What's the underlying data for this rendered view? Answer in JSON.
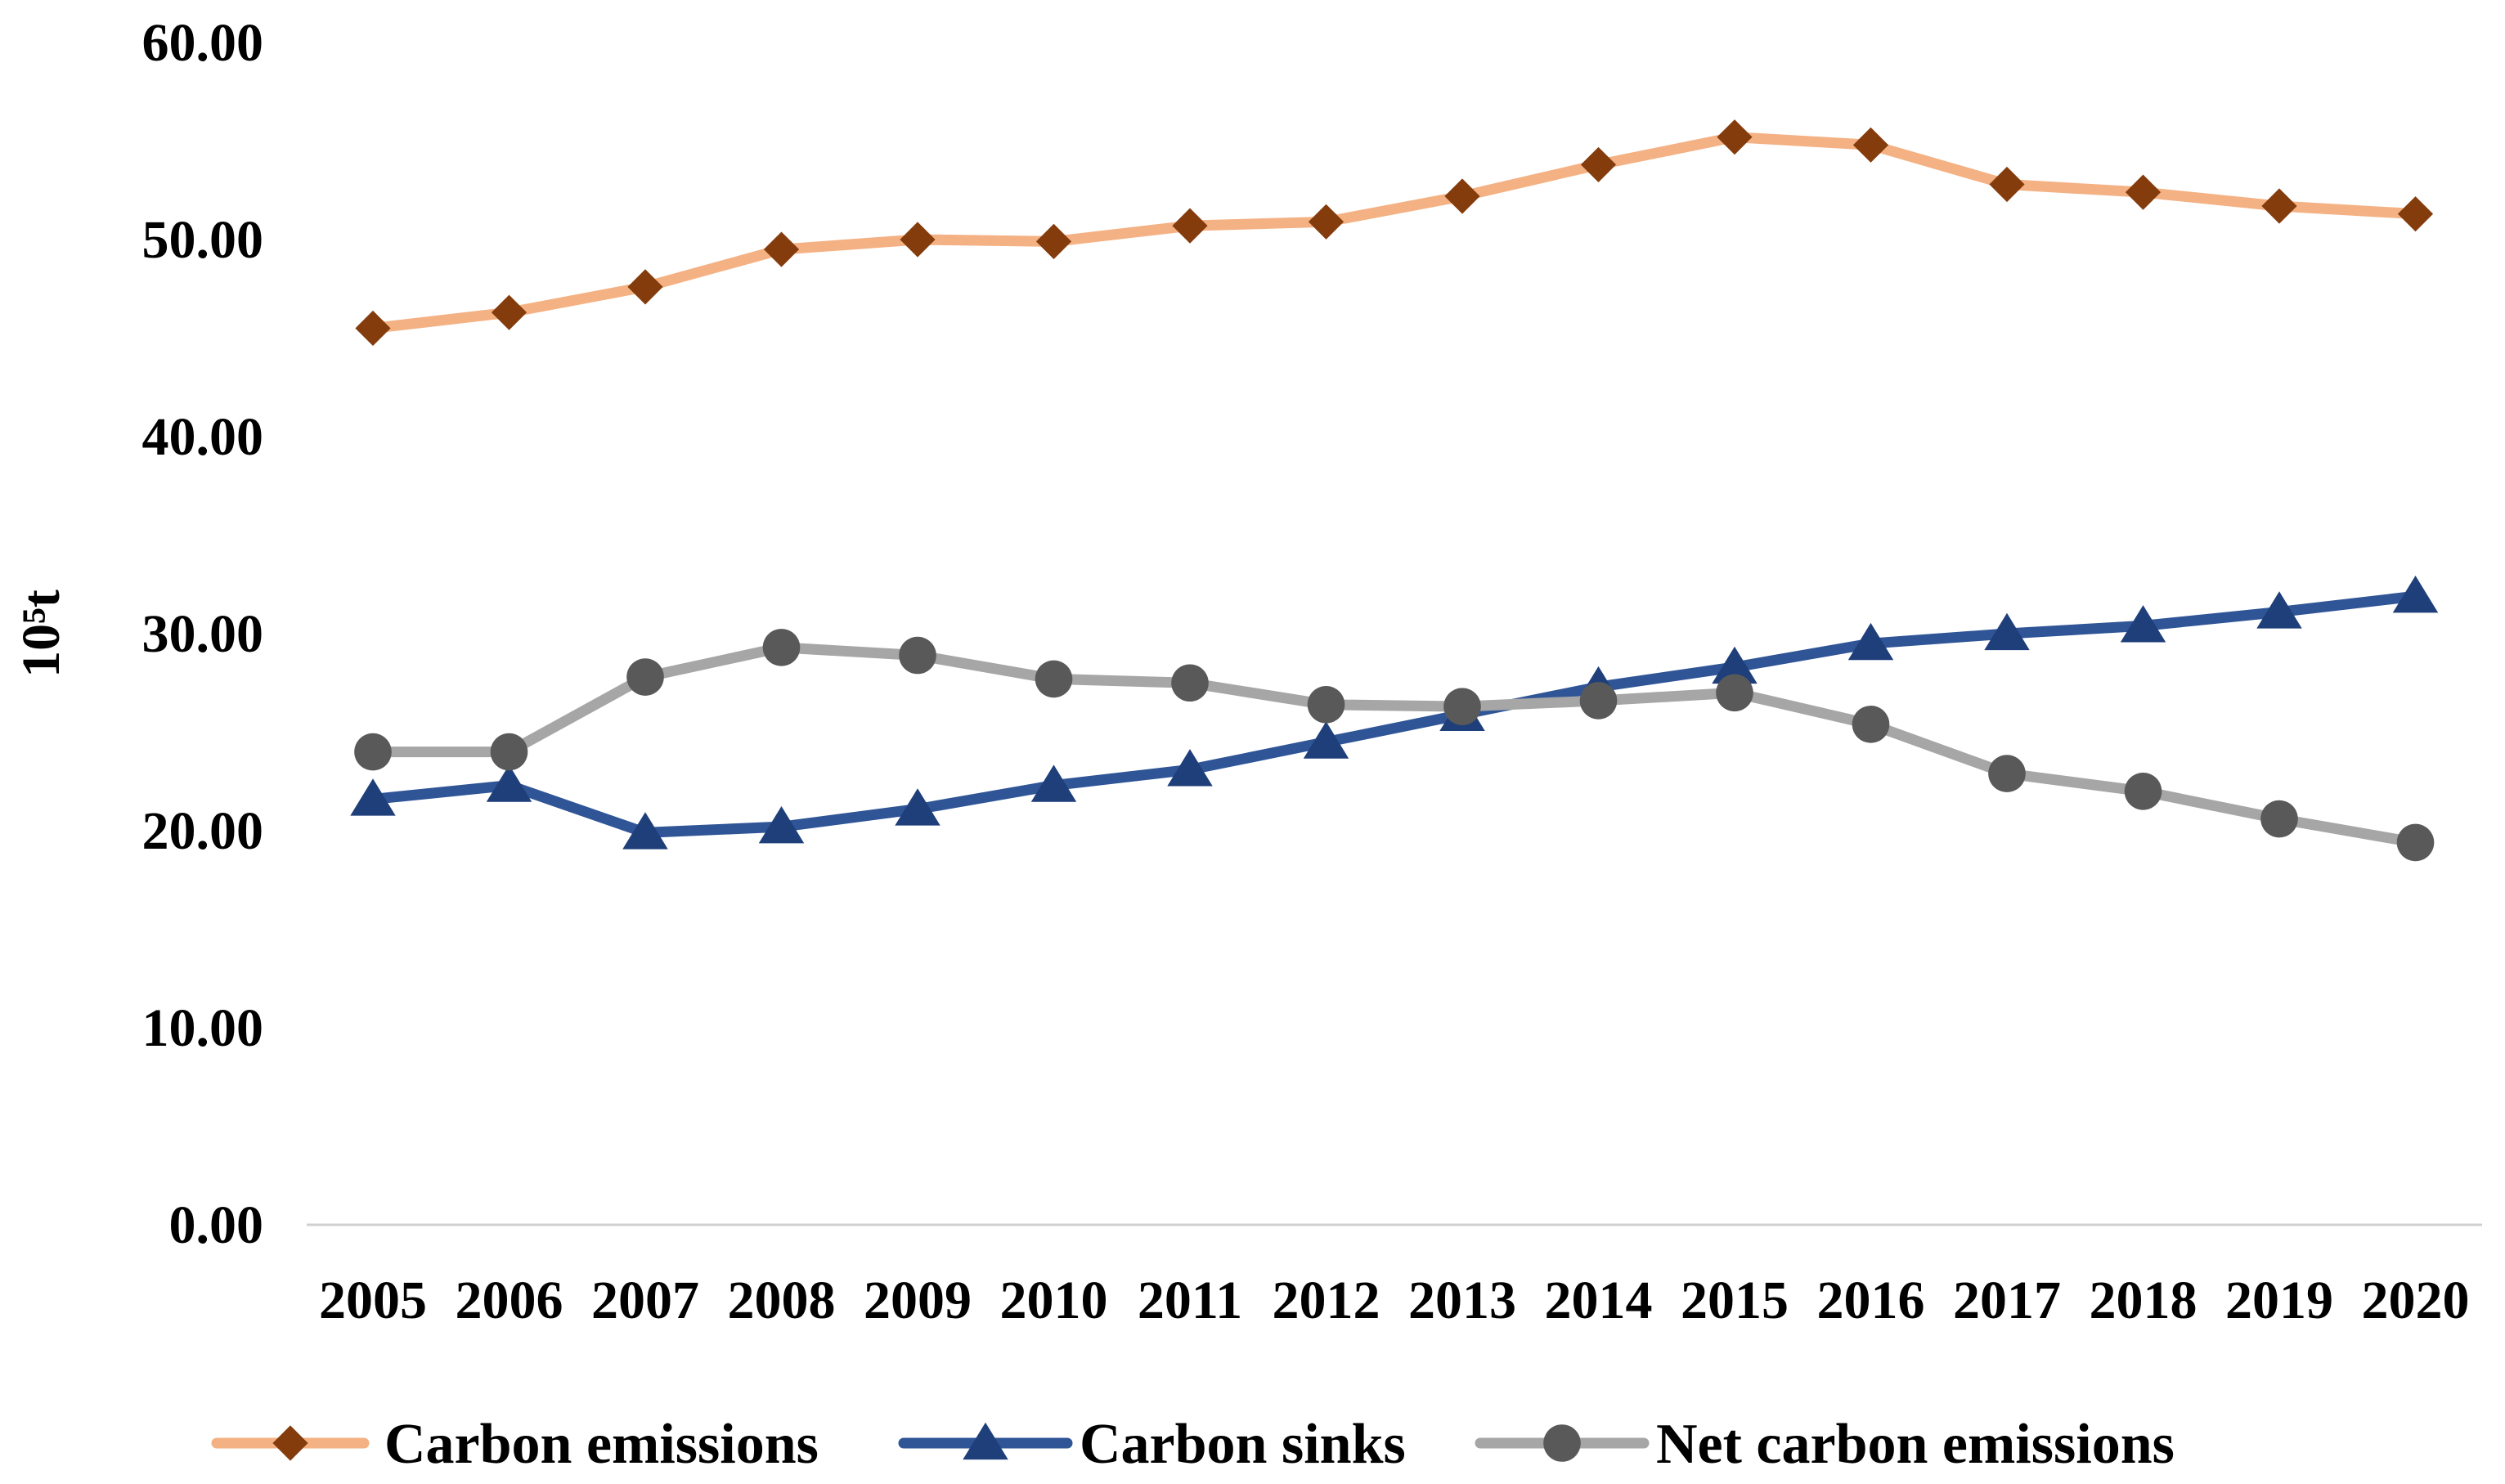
{
  "chart_data": {
    "type": "line",
    "title": "",
    "xlabel": "",
    "ylabel": "10⁵t",
    "categories": [
      "2005",
      "2006",
      "2007",
      "2008",
      "2009",
      "2010",
      "2011",
      "2012",
      "2013",
      "2014",
      "2015",
      "2016",
      "2017",
      "2018",
      "2019",
      "2020"
    ],
    "ylim": [
      0,
      60
    ],
    "yticks": [
      "0.00",
      "10.00",
      "20.00",
      "30.00",
      "40.00",
      "50.00",
      "60.00"
    ],
    "grid": false,
    "legend": "bottom",
    "series": [
      {
        "name": "Carbon emissions",
        "marker": "diamond",
        "line_color": "#F4B183",
        "marker_color": "#843C0C",
        "values": [
          45.5,
          46.3,
          47.6,
          49.5,
          50.0,
          49.9,
          50.7,
          50.9,
          52.2,
          53.8,
          55.2,
          54.8,
          52.8,
          52.4,
          51.7,
          51.3
        ]
      },
      {
        "name": "Carbon sinks",
        "marker": "triangle",
        "line_color": "#2F5597",
        "marker_color": "#1F3F7A",
        "values": [
          21.6,
          22.3,
          19.9,
          20.2,
          21.1,
          22.3,
          23.1,
          24.5,
          25.9,
          27.3,
          28.3,
          29.5,
          30.0,
          30.4,
          31.1,
          31.9
        ]
      },
      {
        "name": "Net carbon emissions",
        "marker": "circle",
        "line_color": "#A6A6A6",
        "marker_color": "#595959",
        "values": [
          24.0,
          24.0,
          27.8,
          29.3,
          28.9,
          27.7,
          27.5,
          26.4,
          26.3,
          26.6,
          27.0,
          25.4,
          22.9,
          22.0,
          20.6,
          19.4
        ]
      }
    ]
  }
}
